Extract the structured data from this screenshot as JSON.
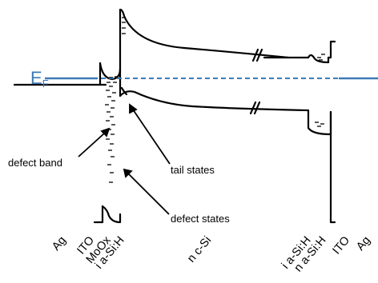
{
  "fermi_level": {
    "symbol": "E",
    "subscript": "F",
    "color": "#3d7ab8"
  },
  "annotations": {
    "defect_band": "defect band",
    "tail_states": "tail states",
    "defect_states": "defect states"
  },
  "layers": [
    {
      "key": "ag_left",
      "label": "Ag"
    },
    {
      "key": "ito_left",
      "label": "ITO"
    },
    {
      "key": "moox",
      "label": "MoOx"
    },
    {
      "key": "ia_si_left",
      "label": "i a-Si:H"
    },
    {
      "key": "nc_si",
      "label": "n c-Si"
    },
    {
      "key": "ia_si_right",
      "label": "i a-Si:H"
    },
    {
      "key": "na_si",
      "label": "n a-Si:H"
    },
    {
      "key": "ito_right",
      "label": "ITO"
    },
    {
      "key": "ag_right",
      "label": "Ag"
    }
  ],
  "colors": {
    "line": "#000000",
    "fermi": "#3d7ab8"
  }
}
